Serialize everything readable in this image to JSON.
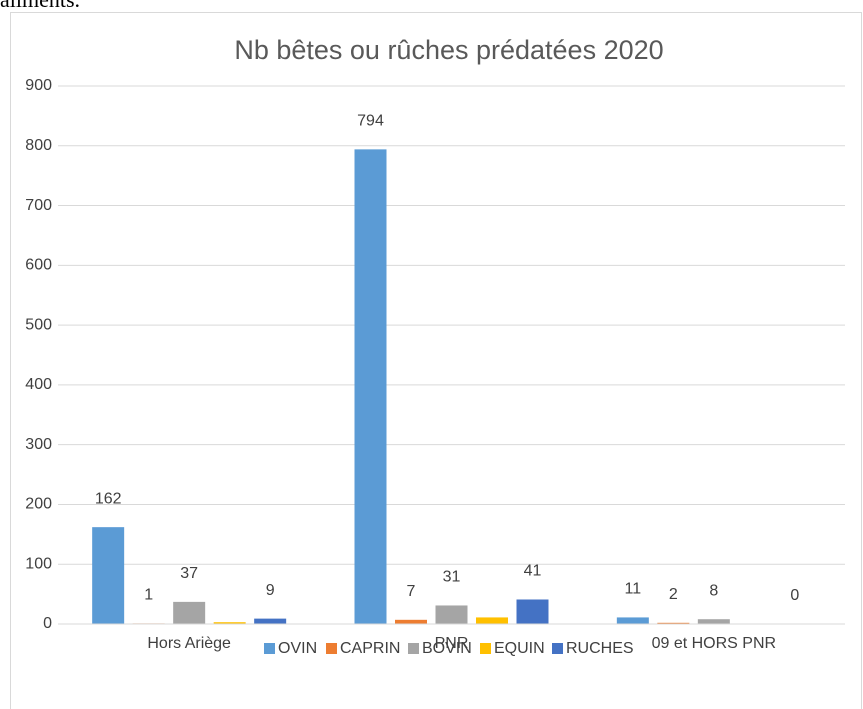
{
  "header_text": "aliments.",
  "chart_data": {
    "type": "bar",
    "title": "Nb bêtes ou rûches prédatées 2020",
    "categories": [
      "Hors Ariège",
      "PNR",
      "09 et HORS PNR"
    ],
    "series": [
      {
        "name": "OVIN",
        "color": "#5b9bd5",
        "values": [
          162,
          794,
          11
        ],
        "data_labels": true
      },
      {
        "name": "CAPRIN",
        "color": "#ed7d31",
        "values": [
          1,
          7,
          2
        ],
        "data_labels": true
      },
      {
        "name": "BOVIN",
        "color": "#a5a5a5",
        "values": [
          37,
          31,
          8
        ],
        "data_labels": true
      },
      {
        "name": "EQUIN",
        "color": "#ffc000",
        "values": [
          3,
          11,
          0
        ],
        "data_labels": false
      },
      {
        "name": "RUCHES",
        "color": "#4472c4",
        "values": [
          9,
          41,
          0
        ],
        "data_labels": true
      }
    ],
    "ylim": [
      0,
      900
    ],
    "yticks": [
      0,
      100,
      200,
      300,
      400,
      500,
      600,
      700,
      800,
      900
    ],
    "grid": true,
    "legend": "bottom"
  }
}
